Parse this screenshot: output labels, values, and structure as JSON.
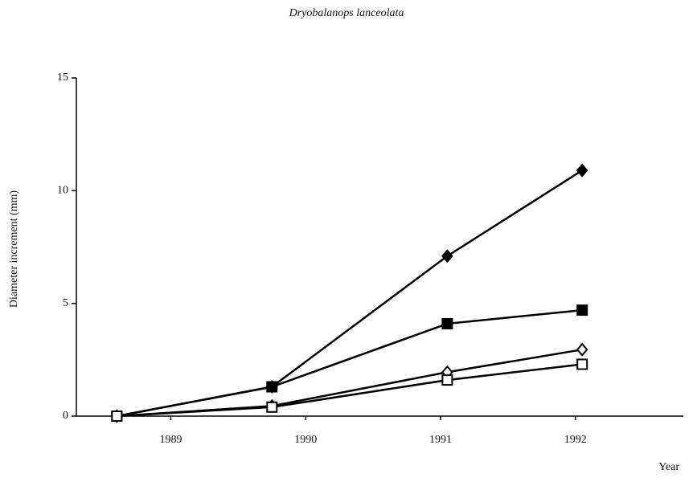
{
  "chart_data": {
    "type": "line",
    "title": "Dryobalanops lanceolata",
    "x_label": "Year",
    "y_label": "Diameter increment (mm)",
    "x": [
      1988.6,
      1989.75,
      1991.05,
      1992.05
    ],
    "series": [
      {
        "color": "#000000",
        "marker": "diamond",
        "filled": true,
        "values": [
          0,
          1.3,
          7.1,
          10.9
        ]
      },
      {
        "color": "#000000",
        "marker": "square",
        "filled": true,
        "values": [
          0,
          1.3,
          4.1,
          4.7
        ]
      },
      {
        "color": "#000000",
        "marker": "diamond",
        "filled": false,
        "values": [
          0,
          0.45,
          1.95,
          2.95
        ]
      },
      {
        "color": "#000000",
        "marker": "square",
        "filled": false,
        "values": [
          0,
          0.4,
          1.6,
          2.3
        ]
      }
    ],
    "xlim": [
      1988.3,
      1992.8
    ],
    "xticks": [
      1989,
      1990,
      1991,
      1992
    ],
    "ylim": [
      0,
      15
    ],
    "yticks": [
      0,
      5,
      10,
      15
    ],
    "grid": false
  }
}
